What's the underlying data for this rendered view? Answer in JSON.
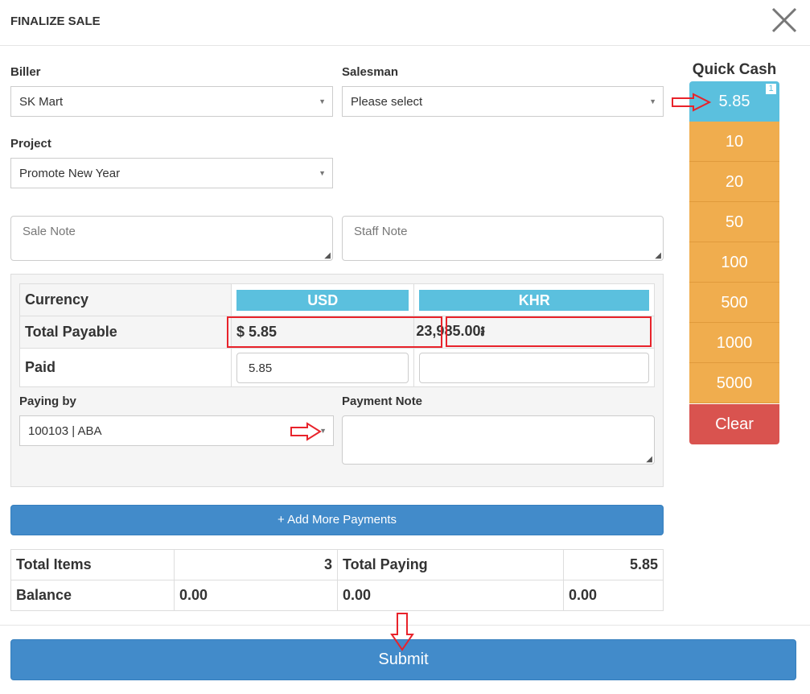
{
  "modal": {
    "title": "FINALIZE SALE"
  },
  "form": {
    "biller": {
      "label": "Biller",
      "value": "SK Mart"
    },
    "salesman": {
      "label": "Salesman",
      "value": "Please select"
    },
    "project": {
      "label": "Project",
      "value": "Promote New Year"
    },
    "sale_note": {
      "placeholder": "Sale Note"
    },
    "staff_note": {
      "placeholder": "Staff Note"
    }
  },
  "payment": {
    "currency_label": "Currency",
    "currencies": [
      "USD",
      "KHR"
    ],
    "total_payable_label": "Total Payable",
    "total_payable_usd": "$ 5.85",
    "total_payable_khr": "23,985.00៛",
    "paid_label": "Paid",
    "paid_usd": "5.85",
    "paid_khr": "",
    "paying_by_label": "Paying by",
    "paying_by_value": "100103 | ABA",
    "payment_note_label": "Payment Note"
  },
  "add_payments_label": "+ Add More Payments",
  "totals": {
    "total_items_label": "Total Items",
    "total_items": "3",
    "total_paying_label": "Total Paying",
    "total_paying": "5.85",
    "balance_label": "Balance",
    "balance_1": "0.00",
    "balance_2": "0.00",
    "balance_3": "0.00"
  },
  "submit_label": "Submit",
  "quick_cash": {
    "title": "Quick Cash",
    "selected": "5.85",
    "selected_count": "1",
    "amounts": [
      "10",
      "20",
      "50",
      "100",
      "500",
      "1000",
      "5000"
    ],
    "clear": "Clear",
    "colors": {
      "selected": "#5bc0de",
      "amount": "#f0ad4e",
      "clear": "#d9534f"
    }
  }
}
